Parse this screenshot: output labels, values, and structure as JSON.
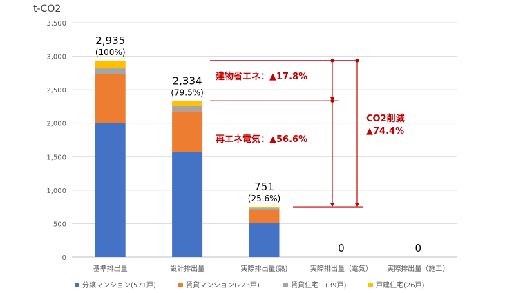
{
  "chart_data": {
    "type": "bar",
    "stacked": true,
    "ylabel": "t-CO2",
    "ylim": [
      0,
      3500
    ],
    "yticks": [
      0,
      500,
      1000,
      1500,
      2000,
      2500,
      3000,
      3500
    ],
    "ytick_labels": [
      "0",
      "500",
      "1,000",
      "1,500",
      "2,000",
      "2,500",
      "3,000",
      "3,500"
    ],
    "grid": true,
    "legend_position": "bottom",
    "categories": [
      "基準排出量",
      "設計排出量",
      "実際排出量(熱)",
      "実際排出量（電気）",
      "実際排出量（施工）"
    ],
    "series": [
      {
        "name": "分譲マンション(571戸)",
        "color": "#4472C4",
        "values": [
          2000,
          1565,
          505,
          0,
          0
        ]
      },
      {
        "name": "賃貸マンション(223戸)",
        "color": "#ED7D31",
        "values": [
          730,
          615,
          205,
          0,
          0
        ]
      },
      {
        "name": "賃貸住宅　(39戸)",
        "color": "#A5A5A5",
        "values": [
          90,
          75,
          20,
          0,
          0
        ]
      },
      {
        "name": "戸建住宅(26戸)",
        "color": "#FFC000",
        "values": [
          115,
          79,
          21,
          0,
          0
        ]
      }
    ],
    "totals": [
      2935,
      2334,
      751,
      0,
      0
    ],
    "total_labels": [
      "2,935",
      "2,334",
      "751",
      "0",
      "0"
    ],
    "percent_labels": [
      "(100%)",
      "(79.5%)",
      "(25.6%)",
      "",
      ""
    ],
    "annotations": {
      "color": "#C00000",
      "building_saving": "建物省エネ：▲17.8%",
      "renewable": "再エネ電気：▲56.6%",
      "total_reduction_title": "CO2削減",
      "total_reduction_value": "▲74.4%"
    }
  }
}
